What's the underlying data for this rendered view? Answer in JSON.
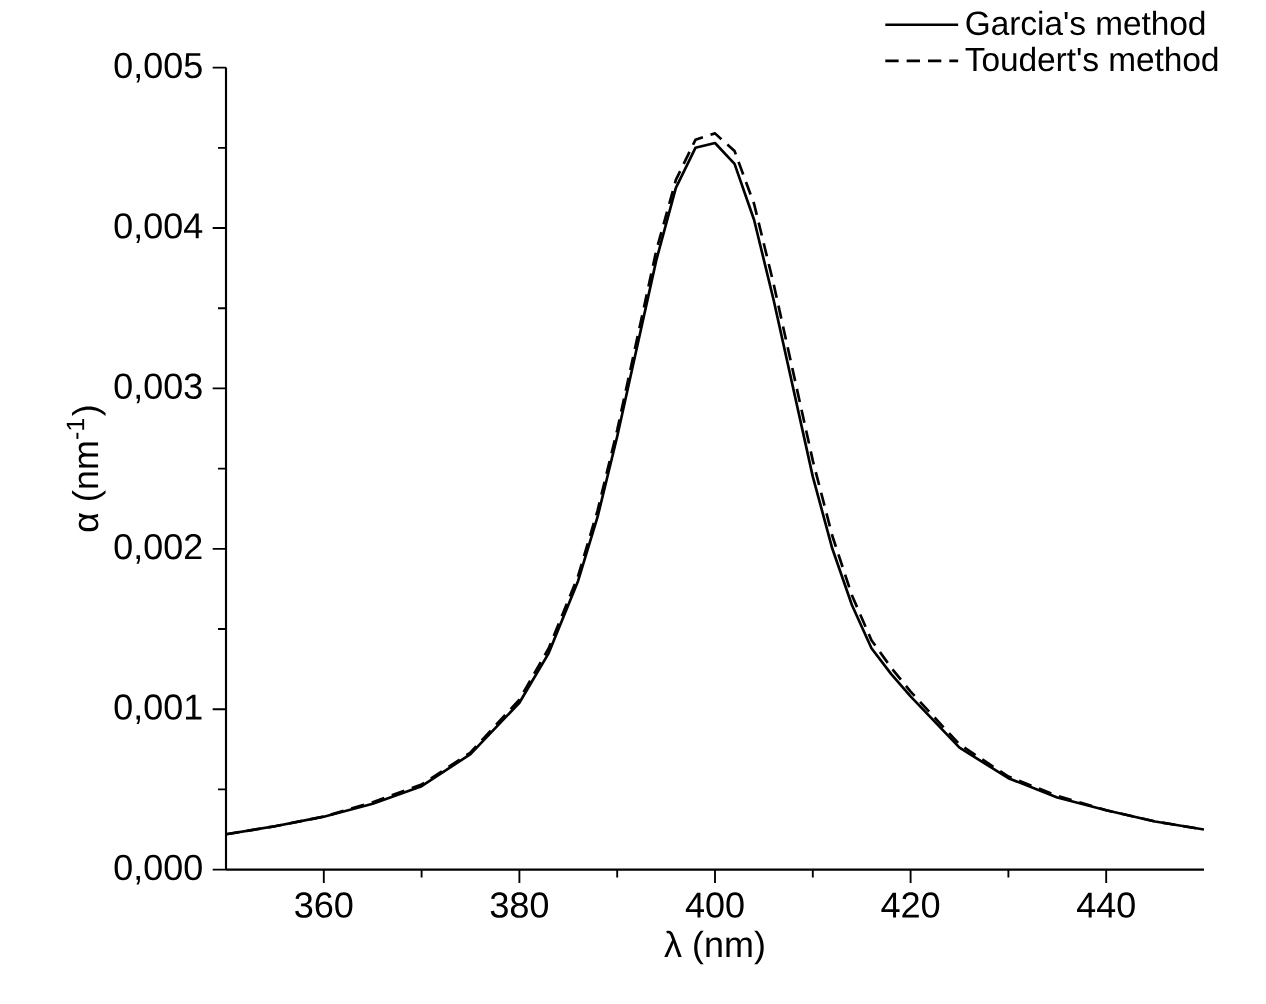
{
  "chart_data": {
    "type": "line",
    "xlabel": "λ (nm)",
    "ylabel": "α (nm$^{-1}$)",
    "xlim": [
      350,
      450
    ],
    "ylim": [
      0,
      0.005
    ],
    "xticks": [
      360,
      380,
      400,
      420,
      440
    ],
    "yticks": [
      {
        "value": 0,
        "label": "0,000"
      },
      {
        "value": 0.001,
        "label": "0,001"
      },
      {
        "value": 0.002,
        "label": "0,002"
      },
      {
        "value": 0.003,
        "label": "0,003"
      },
      {
        "value": 0.004,
        "label": "0,004"
      },
      {
        "value": 0.005,
        "label": "0,005"
      }
    ],
    "legend": "top right",
    "marker": "none",
    "series": [
      {
        "name": "Garcia's method",
        "color": "#000000",
        "line_style": "solid",
        "x": [
          350,
          355,
          360,
          365,
          370,
          375,
          380,
          383,
          386,
          388,
          390,
          392,
          394,
          396,
          398,
          400,
          402,
          404,
          406,
          408,
          410,
          412,
          414,
          416,
          418,
          420,
          425,
          430,
          435,
          440,
          445,
          450
        ],
        "values": [
          0.00022,
          0.00027,
          0.00033,
          0.00041,
          0.00052,
          0.00072,
          0.00104,
          0.00135,
          0.0018,
          0.0022,
          0.0027,
          0.00325,
          0.0038,
          0.00425,
          0.0045,
          0.00453,
          0.0044,
          0.00405,
          0.00355,
          0.003,
          0.00245,
          0.002,
          0.00165,
          0.00138,
          0.00122,
          0.00108,
          0.00076,
          0.00057,
          0.00045,
          0.00037,
          0.0003,
          0.00025
        ]
      },
      {
        "name": "Toudert's method",
        "color": "#000000",
        "line_style": "dashed",
        "x": [
          350,
          355,
          360,
          365,
          370,
          375,
          380,
          383,
          386,
          388,
          390,
          392,
          394,
          396,
          398,
          400,
          402,
          404,
          406,
          408,
          410,
          412,
          414,
          416,
          418,
          420,
          425,
          430,
          435,
          440,
          445,
          450
        ],
        "values": [
          0.00022,
          0.00027,
          0.00033,
          0.00042,
          0.00053,
          0.00073,
          0.00106,
          0.00138,
          0.00183,
          0.00224,
          0.00274,
          0.0033,
          0.00386,
          0.0043,
          0.00455,
          0.00459,
          0.00448,
          0.00415,
          0.00365,
          0.0031,
          0.00255,
          0.00208,
          0.00171,
          0.00143,
          0.00126,
          0.00111,
          0.00078,
          0.00058,
          0.00046,
          0.00037,
          0.0003,
          0.00025
        ]
      }
    ]
  }
}
